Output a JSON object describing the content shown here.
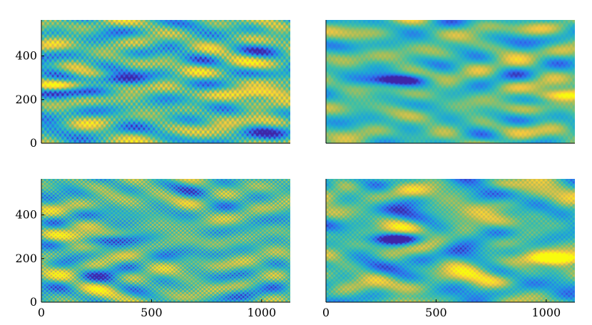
{
  "figure": {
    "description_none": ""
  },
  "chart_data": [
    {
      "type": "heatmap",
      "title": "",
      "xlabel": "",
      "ylabel": "",
      "xlim": [
        0,
        1130
      ],
      "ylim": [
        0,
        565
      ],
      "xticks": [],
      "yticks": [
        0,
        200,
        400
      ],
      "grid": false,
      "colormap": [
        "#3e26a8",
        "#2f6df0",
        "#1ea8d6",
        "#42c0a3",
        "#a5be5a",
        "#f4c542",
        "#f9fb0e"
      ],
      "features": [
        {
          "kind": "dark-band",
          "x": 300,
          "y": 290
        },
        {
          "kind": "dark-band",
          "x": 60,
          "y": 230
        },
        {
          "kind": "bright-band",
          "x": 150,
          "y": 270
        },
        {
          "kind": "bright-band",
          "x": 980,
          "y": 230
        }
      ]
    },
    {
      "type": "heatmap",
      "title": "",
      "xlabel": "",
      "ylabel": "",
      "xlim": [
        0,
        1130
      ],
      "ylim": [
        0,
        565
      ],
      "xticks": [],
      "yticks": [],
      "grid": false,
      "colormap": [
        "#3e26a8",
        "#2f6df0",
        "#1ea8d6",
        "#42c0a3",
        "#a5be5a",
        "#f4c542",
        "#f9fb0e"
      ],
      "features": [
        {
          "kind": "dark-band",
          "x": 300,
          "y": 290
        },
        {
          "kind": "bright-band",
          "x": 1080,
          "y": 220
        }
      ]
    },
    {
      "type": "heatmap",
      "title": "",
      "xlabel": "",
      "ylabel": "",
      "xlim": [
        0,
        1130
      ],
      "ylim": [
        0,
        565
      ],
      "xticks": [
        0,
        500,
        1000
      ],
      "yticks": [
        0,
        200,
        400
      ],
      "grid": false,
      "colormap": [
        "#3e26a8",
        "#2f6df0",
        "#1ea8d6",
        "#42c0a3",
        "#a5be5a",
        "#f4c542",
        "#f9fb0e"
      ],
      "features": [
        {
          "kind": "dark-band",
          "x": 300,
          "y": 290
        },
        {
          "kind": "bright-band",
          "x": 200,
          "y": 300
        }
      ]
    },
    {
      "type": "heatmap",
      "title": "",
      "xlabel": "",
      "ylabel": "",
      "xlim": [
        0,
        1130
      ],
      "ylim": [
        0,
        565
      ],
      "xticks": [
        0,
        500,
        1000
      ],
      "yticks": [],
      "grid": false,
      "colormap": [
        "#3e26a8",
        "#2f6df0",
        "#1ea8d6",
        "#42c0a3",
        "#a5be5a",
        "#f4c542",
        "#f9fb0e"
      ],
      "features": [
        {
          "kind": "dark-band",
          "x": 300,
          "y": 290
        },
        {
          "kind": "bright-band",
          "x": 1050,
          "y": 200
        }
      ]
    }
  ]
}
